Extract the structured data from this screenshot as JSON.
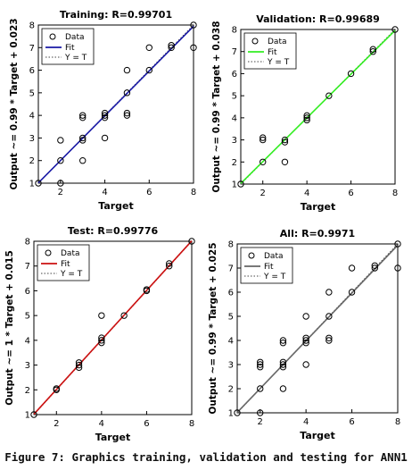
{
  "caption": "Figure 7: Graphics training, validation and testing for ANN1",
  "chart_data": [
    {
      "type": "scatter",
      "title": "Training: R=0.99701",
      "xlabel": "Target",
      "ylabel": "Output ~= 0.99 * Target + 0.023",
      "xlim": [
        1,
        8
      ],
      "ylim": [
        1,
        8
      ],
      "x_ticks": [
        2,
        4,
        6,
        8
      ],
      "y_ticks": [
        1,
        2,
        3,
        4,
        5,
        6,
        7,
        8
      ],
      "fit_color": "#1a1aa6",
      "fit": {
        "slope": 0.99,
        "intercept": 0.023
      },
      "legend": [
        "Data",
        "Fit",
        "Y = T"
      ],
      "legend_position": "top-left",
      "points": [
        [
          1,
          1
        ],
        [
          2,
          1
        ],
        [
          2,
          2
        ],
        [
          2,
          2.9
        ],
        [
          3,
          2
        ],
        [
          3,
          2.9
        ],
        [
          3,
          3
        ],
        [
          3,
          3.9
        ],
        [
          3,
          4
        ],
        [
          4,
          3
        ],
        [
          4,
          3.9
        ],
        [
          4,
          4
        ],
        [
          4,
          4.1
        ],
        [
          5,
          4
        ],
        [
          5,
          4.1
        ],
        [
          5,
          5
        ],
        [
          5,
          6
        ],
        [
          6,
          6
        ],
        [
          6,
          7
        ],
        [
          7,
          7
        ],
        [
          7,
          7.1
        ],
        [
          8,
          7
        ],
        [
          8,
          8
        ]
      ]
    },
    {
      "type": "scatter",
      "title": "Validation: R=0.99689",
      "xlabel": "Target",
      "ylabel": "Output ~= 0.99 * Target + 0.038",
      "xlim": [
        1,
        8
      ],
      "ylim": [
        1,
        8
      ],
      "x_ticks": [
        2,
        4,
        6,
        8
      ],
      "y_ticks": [
        1,
        2,
        3,
        4,
        5,
        6,
        7,
        8
      ],
      "fit_color": "#33ee22",
      "fit": {
        "slope": 0.99,
        "intercept": 0.038
      },
      "legend": [
        "Data",
        "Fit",
        "Y = T"
      ],
      "legend_position": "top-left",
      "points": [
        [
          1,
          1
        ],
        [
          2,
          2
        ],
        [
          2,
          3
        ],
        [
          2,
          3.1
        ],
        [
          3,
          2
        ],
        [
          3,
          2.9
        ],
        [
          3,
          3
        ],
        [
          4,
          3.9
        ],
        [
          4,
          4
        ],
        [
          4,
          4.1
        ],
        [
          5,
          5
        ],
        [
          6,
          6
        ],
        [
          7,
          7
        ],
        [
          7,
          7.1
        ],
        [
          8,
          8
        ]
      ]
    },
    {
      "type": "scatter",
      "title": "Test: R=0.99776",
      "xlabel": "Target",
      "ylabel": "Output ~= 1 * Target + 0.015",
      "xlim": [
        1,
        8
      ],
      "ylim": [
        1,
        8
      ],
      "x_ticks": [
        2,
        4,
        6,
        8
      ],
      "y_ticks": [
        1,
        2,
        3,
        4,
        5,
        6,
        7,
        8
      ],
      "fit_color": "#cc1111",
      "fit": {
        "slope": 1.0,
        "intercept": 0.015
      },
      "legend": [
        "Data",
        "Fit",
        "Y = T"
      ],
      "legend_position": "top-left",
      "points": [
        [
          1,
          1
        ],
        [
          2,
          2
        ],
        [
          2,
          2.05
        ],
        [
          3,
          2.9
        ],
        [
          3,
          3
        ],
        [
          3,
          3.1
        ],
        [
          4,
          3.9
        ],
        [
          4,
          4
        ],
        [
          4,
          4.1
        ],
        [
          4,
          5
        ],
        [
          5,
          5
        ],
        [
          6,
          6
        ],
        [
          6,
          6.05
        ],
        [
          7,
          7
        ],
        [
          7,
          7.1
        ],
        [
          8,
          8
        ]
      ]
    },
    {
      "type": "scatter",
      "title": "All: R=0.9971",
      "xlabel": "Target",
      "ylabel": "Output ~= 0.99 * Target + 0.025",
      "xlim": [
        1,
        8
      ],
      "ylim": [
        1,
        8
      ],
      "x_ticks": [
        2,
        4,
        6,
        8
      ],
      "y_ticks": [
        1,
        2,
        3,
        4,
        5,
        6,
        7,
        8
      ],
      "fit_color": "#666666",
      "fit": {
        "slope": 0.99,
        "intercept": 0.025
      },
      "legend": [
        "Data",
        "Fit",
        "Y = T"
      ],
      "legend_position": "top-left",
      "points": [
        [
          1,
          1
        ],
        [
          2,
          1
        ],
        [
          2,
          2
        ],
        [
          2,
          2.9
        ],
        [
          2,
          3
        ],
        [
          2,
          3.1
        ],
        [
          3,
          2
        ],
        [
          3,
          2.9
        ],
        [
          3,
          3
        ],
        [
          3,
          3.1
        ],
        [
          3,
          3.9
        ],
        [
          3,
          4
        ],
        [
          4,
          3
        ],
        [
          4,
          3.9
        ],
        [
          4,
          4
        ],
        [
          4,
          4.1
        ],
        [
          4,
          5
        ],
        [
          5,
          4
        ],
        [
          5,
          4.1
        ],
        [
          5,
          5
        ],
        [
          5,
          6
        ],
        [
          6,
          6
        ],
        [
          6,
          7
        ],
        [
          7,
          7
        ],
        [
          7,
          7.1
        ],
        [
          8,
          7
        ],
        [
          8,
          8
        ]
      ]
    }
  ]
}
